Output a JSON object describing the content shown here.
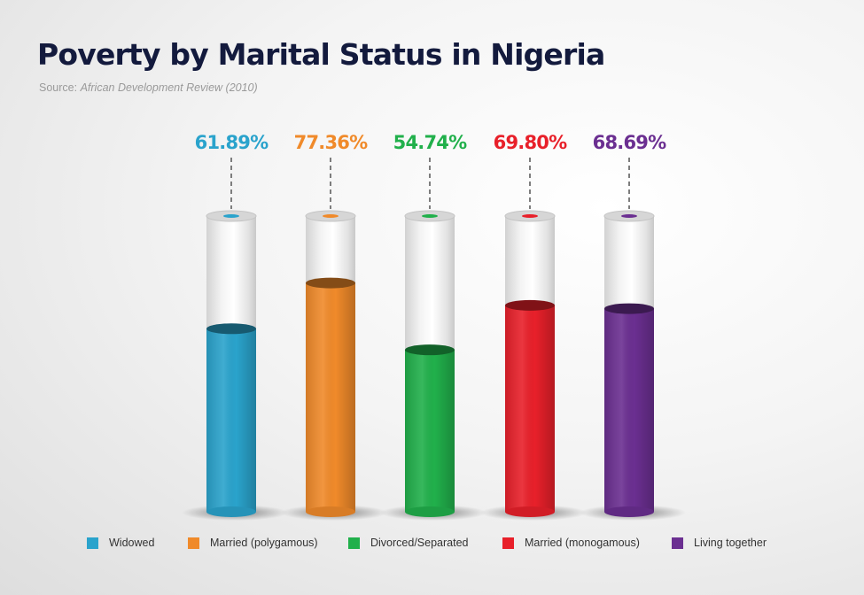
{
  "chart_data": {
    "type": "bar",
    "title": "Poverty by Marital Status in Nigeria",
    "source_label": "Source:",
    "source_name": "African Development Review (2010)",
    "categories": [
      "Widowed",
      "Married (polygamous)",
      "Divorced/Separated",
      "Married (monogamous)",
      "Living together"
    ],
    "values": [
      61.89,
      77.36,
      54.74,
      69.8,
      68.69
    ],
    "value_labels": [
      "61.89%",
      "77.36%",
      "54.74%",
      "69.80%",
      "68.69%"
    ],
    "colors": [
      "#2aa3cc",
      "#f08a2a",
      "#21b04b",
      "#e8202a",
      "#6b2f91"
    ],
    "ylim": [
      0,
      100
    ],
    "unit": "%",
    "legend_position": "bottom",
    "grid": false
  }
}
